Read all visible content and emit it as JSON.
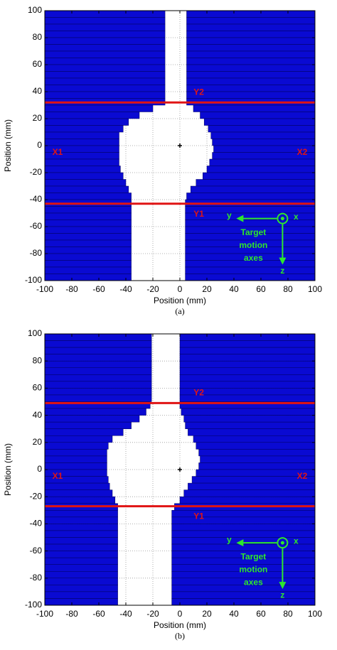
{
  "chart_data": [
    {
      "type": "mlc",
      "caption": "(a)",
      "xlabel": "Position (mm)",
      "ylabel": "Position (mm)",
      "xlim": [
        -100,
        100
      ],
      "ylim": [
        -100,
        100
      ],
      "xticks": [
        -100,
        -80,
        -60,
        -40,
        -20,
        0,
        20,
        40,
        60,
        80,
        100
      ],
      "yticks": [
        -100,
        -80,
        -60,
        -40,
        -20,
        0,
        20,
        40,
        60,
        80,
        100
      ],
      "grid": true,
      "leaf_color": "#0a0ad2",
      "jaw_color": "#e01414",
      "leaf_edges": [
        100,
        95,
        90,
        85,
        80,
        75,
        70,
        65,
        60,
        55,
        50,
        45,
        40,
        35,
        30,
        25,
        20,
        15,
        10,
        5,
        0,
        -5,
        -10,
        -15,
        -20,
        -25,
        -30,
        -35,
        -40,
        -45,
        -50,
        -55,
        -60,
        -65,
        -70,
        -75,
        -80,
        -85,
        -90,
        -95,
        -100
      ],
      "series": [
        {
          "name": "X1",
          "values": [
            -11,
            -11,
            -11,
            -11,
            -11,
            -11,
            -11,
            -11,
            -11,
            -11,
            -11,
            -11,
            -11,
            -11,
            -20,
            -30,
            -38,
            -42,
            -45,
            -45,
            -45,
            -45,
            -45,
            -44,
            -42,
            -40,
            -38,
            -36,
            -36,
            -36,
            -36,
            -36,
            -36,
            -36,
            -36,
            -36,
            -36,
            -36,
            -36,
            -36
          ]
        },
        {
          "name": "X2",
          "values": [
            5,
            5,
            5,
            5,
            5,
            5,
            5,
            5,
            5,
            5,
            5,
            5,
            5,
            5,
            10,
            15,
            18,
            21,
            23,
            24,
            25,
            24,
            22,
            20,
            17,
            12,
            8,
            5,
            4,
            4,
            4,
            4,
            4,
            4,
            4,
            4,
            4,
            4,
            4,
            4
          ]
        }
      ],
      "jaws": [
        {
          "name": "Y2",
          "value": 32
        },
        {
          "name": "Y1",
          "value": -43
        }
      ],
      "isocenter": [
        0,
        0
      ],
      "axes_icon": {
        "color": "#2ee62e",
        "labels": [
          "y",
          "x",
          "z"
        ],
        "caption": [
          "Target",
          "motion",
          "axes"
        ]
      }
    },
    {
      "type": "mlc",
      "caption": "(b)",
      "xlabel": "Position (mm)",
      "ylabel": "Position (mm)",
      "xlim": [
        -100,
        100
      ],
      "ylim": [
        -100,
        100
      ],
      "xticks": [
        -100,
        -80,
        -60,
        -40,
        -20,
        0,
        20,
        40,
        60,
        80,
        100
      ],
      "yticks": [
        -100,
        -80,
        -60,
        -40,
        -20,
        0,
        20,
        40,
        60,
        80,
        100
      ],
      "grid": true,
      "leaf_color": "#0a0ad2",
      "jaw_color": "#e01414",
      "leaf_edges": [
        100,
        95,
        90,
        85,
        80,
        75,
        70,
        65,
        60,
        55,
        50,
        45,
        40,
        35,
        30,
        25,
        20,
        15,
        10,
        5,
        0,
        -5,
        -10,
        -15,
        -20,
        -25,
        -30,
        -35,
        -40,
        -45,
        -50,
        -55,
        -60,
        -65,
        -70,
        -75,
        -80,
        -85,
        -90,
        -95,
        -100
      ],
      "series": [
        {
          "name": "X1",
          "values": [
            -21,
            -21,
            -21,
            -21,
            -21,
            -21,
            -21,
            -21,
            -21,
            -21,
            -22,
            -25,
            -30,
            -36,
            -42,
            -50,
            -53,
            -54,
            -54,
            -54,
            -54,
            -53,
            -52,
            -50,
            -48,
            -46,
            -46,
            -46,
            -46,
            -46,
            -46,
            -46,
            -46,
            -46,
            -46,
            -46,
            -46,
            -46,
            -46,
            -46
          ]
        },
        {
          "name": "X2",
          "values": [
            0,
            0,
            0,
            0,
            0,
            0,
            0,
            0,
            0,
            0,
            0,
            1,
            3,
            4,
            6,
            10,
            12,
            14,
            15,
            14,
            12,
            9,
            6,
            3,
            0,
            -4,
            -6,
            -6,
            -6,
            -6,
            -6,
            -6,
            -6,
            -6,
            -6,
            -6,
            -6,
            -6,
            -6,
            -6
          ]
        }
      ],
      "jaws": [
        {
          "name": "Y2",
          "value": 49
        },
        {
          "name": "Y1",
          "value": -27
        }
      ],
      "isocenter": [
        0,
        0
      ],
      "axes_icon": {
        "color": "#2ee62e",
        "labels": [
          "y",
          "x",
          "z"
        ],
        "caption": [
          "Target",
          "motion",
          "axes"
        ]
      }
    }
  ]
}
